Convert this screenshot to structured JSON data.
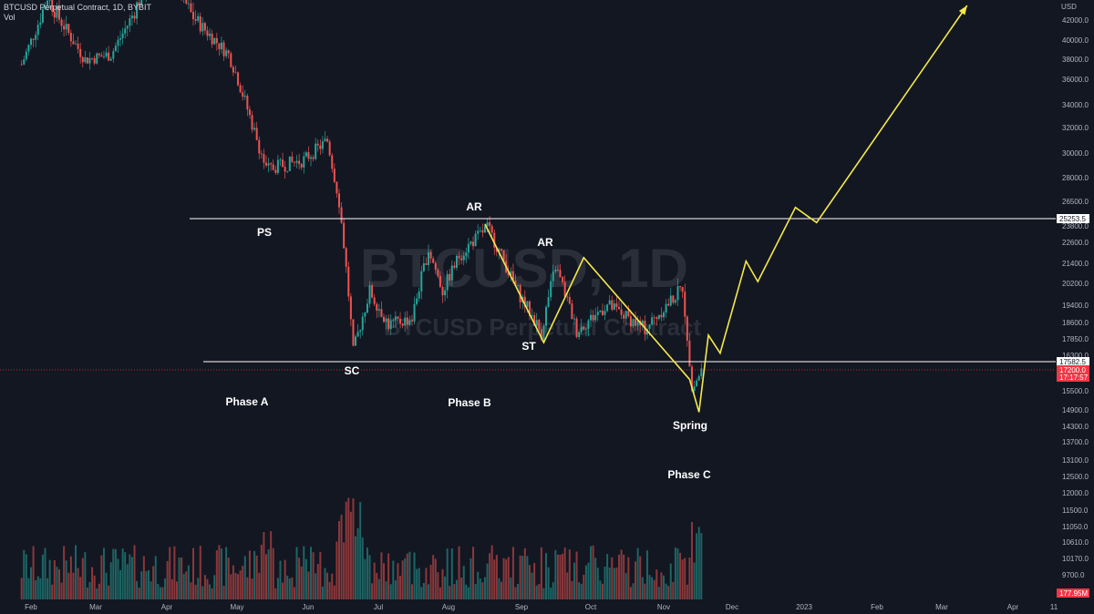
{
  "header": {
    "title": "BTCUSD Perpetual Contract, 1D, BYBIT",
    "vol_label": "Vol"
  },
  "watermark": {
    "line1": "BTCUSD, 1D",
    "line2": "BTCUSD Perpetual Contract"
  },
  "price_axis": {
    "unit": "USD",
    "ticks": [
      "42000.0",
      "40000.0",
      "38000.0",
      "36000.0",
      "34000.0",
      "32000.0",
      "30000.0",
      "28000.0",
      "26500.0",
      "23800.0",
      "22600.0",
      "21400.0",
      "20200.0",
      "19400.0",
      "18600.0",
      "17850.0",
      "16300.0",
      "15500.0",
      "14900.0",
      "14300.0",
      "13700.0",
      "13100.0",
      "12500.0",
      "12000.0",
      "11500.0",
      "11050.0",
      "10610.0",
      "10170.0",
      "9700.0"
    ],
    "badges": [
      {
        "label": "25253.5",
        "color": "#ffffff",
        "text_color": "#131722"
      },
      {
        "label": "17582.5",
        "color": "#ffffff",
        "text_color": "#131722"
      },
      {
        "label": "17200.0",
        "color": "#f23645",
        "text_color": "#ffffff"
      },
      {
        "label": "17:17:57",
        "color": "#f23645",
        "text_color": "#ffffff"
      },
      {
        "label": "177.95M",
        "color": "#f23645",
        "text_color": "#ffffff"
      }
    ]
  },
  "time_axis": {
    "labels": [
      "Feb",
      "Mar",
      "Apr",
      "May",
      "Jun",
      "Jul",
      "Aug",
      "Sep",
      "Oct",
      "Nov",
      "Dec",
      "2023",
      "Feb",
      "Mar",
      "Apr",
      "11"
    ]
  },
  "annotations": {
    "ps": "PS",
    "sc": "SC",
    "ar1": "AR",
    "ar2": "AR",
    "st": "ST",
    "spring": "Spring",
    "phase_a": "Phase A",
    "phase_b": "Phase B",
    "phase_c": "Phase C"
  },
  "colors": {
    "background": "#131722",
    "up": "#26a69a",
    "down": "#ef5350",
    "projection": "#f5e94b",
    "level_line": "#ffffff"
  },
  "chart_data": {
    "type": "candlestick",
    "symbol": "BTCUSD Perpetual Contract",
    "interval": "1D",
    "exchange": "BYBIT",
    "y_unit": "USD",
    "ylim": [
      15000,
      43500
    ],
    "levels": [
      25253.5,
      17582.5
    ],
    "last_price": 17200.0,
    "last_volume": "177.95M",
    "price_path": [
      [
        "2022-01-28",
        37500
      ],
      [
        "2022-02-08",
        44000
      ],
      [
        "2022-02-24",
        38000
      ],
      [
        "2022-03-07",
        38500
      ],
      [
        "2022-03-28",
        47500
      ],
      [
        "2022-04-10",
        42500
      ],
      [
        "2022-04-26",
        38500
      ],
      [
        "2022-05-09",
        30500
      ],
      [
        "2022-05-12",
        28800
      ],
      [
        "2022-05-28",
        29500
      ],
      [
        "2022-06-07",
        31000
      ],
      [
        "2022-06-12",
        26500
      ],
      [
        "2022-06-18",
        18000
      ],
      [
        "2022-06-25",
        21000
      ],
      [
        "2022-07-03",
        19300
      ],
      [
        "2022-07-13",
        19600
      ],
      [
        "2022-07-20",
        23400
      ],
      [
        "2022-07-26",
        21000
      ],
      [
        "2022-08-02",
        23000
      ],
      [
        "2022-08-14",
        24800
      ],
      [
        "2022-08-26",
        21200
      ],
      [
        "2022-09-06",
        18900
      ],
      [
        "2022-09-12",
        22400
      ],
      [
        "2022-09-21",
        19000
      ],
      [
        "2022-10-04",
        20300
      ],
      [
        "2022-10-20",
        19100
      ],
      [
        "2022-10-31",
        20500
      ],
      [
        "2022-11-05",
        21200
      ],
      [
        "2022-11-09",
        16300
      ],
      [
        "2022-11-13",
        17200
      ]
    ],
    "projection": [
      [
        "2022-08-13",
        25000
      ],
      [
        "2022-09-07",
        18450
      ],
      [
        "2022-09-24",
        22900
      ],
      [
        "2022-11-08",
        16800
      ],
      [
        "2022-11-12",
        15400
      ],
      [
        "2022-11-16",
        18800
      ],
      [
        "2022-11-21",
        17950
      ],
      [
        "2022-12-02",
        22700
      ],
      [
        "2022-12-07",
        21500
      ],
      [
        "2022-12-23",
        26100
      ],
      [
        "2023-01-01",
        25100
      ],
      [
        "2023-03-06",
        43200
      ]
    ]
  }
}
